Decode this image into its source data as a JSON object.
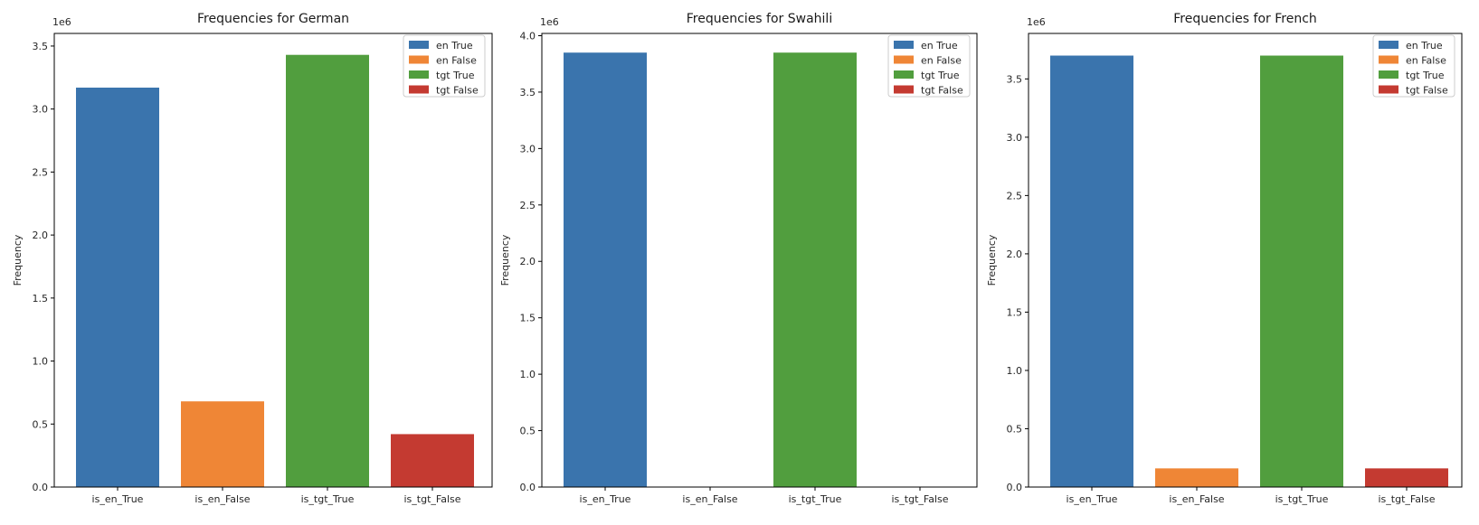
{
  "chart_data": [
    {
      "type": "bar",
      "title": "Frequencies for German",
      "xlabel": "",
      "ylabel": "Frequency",
      "y_offset_text": "1e6",
      "categories": [
        "is_en_True",
        "is_en_False",
        "is_tgt_True",
        "is_tgt_False"
      ],
      "values": [
        3170000,
        680000,
        3430000,
        420000
      ],
      "ylim": [
        0,
        3600000
      ],
      "yticks": [
        0,
        500000,
        1000000,
        1500000,
        2000000,
        2500000,
        3000000,
        3500000
      ],
      "ytick_labels": [
        "0.0",
        "0.5",
        "1.0",
        "1.5",
        "2.0",
        "2.5",
        "3.0",
        "3.5"
      ],
      "legend": [
        "en True",
        "en False",
        "tgt True",
        "tgt False"
      ],
      "legend_position": "top-right",
      "grid": false
    },
    {
      "type": "bar",
      "title": "Frequencies for Swahili",
      "xlabel": "",
      "ylabel": "Frequency",
      "y_offset_text": "1e6",
      "categories": [
        "is_en_True",
        "is_en_False",
        "is_tgt_True",
        "is_tgt_False"
      ],
      "values": [
        3850000,
        0,
        3850000,
        0
      ],
      "ylim": [
        0,
        4020000
      ],
      "yticks": [
        0,
        500000,
        1000000,
        1500000,
        2000000,
        2500000,
        3000000,
        3500000,
        4000000
      ],
      "ytick_labels": [
        "0.0",
        "0.5",
        "1.0",
        "1.5",
        "2.0",
        "2.5",
        "3.0",
        "3.5",
        "4.0"
      ],
      "legend": [
        "en True",
        "en False",
        "tgt True",
        "tgt False"
      ],
      "legend_position": "top-right",
      "grid": false
    },
    {
      "type": "bar",
      "title": "Frequencies for French",
      "xlabel": "",
      "ylabel": "Frequency",
      "y_offset_text": "1e6",
      "categories": [
        "is_en_True",
        "is_en_False",
        "is_tgt_True",
        "is_tgt_False"
      ],
      "values": [
        3700000,
        160000,
        3700000,
        160000
      ],
      "ylim": [
        0,
        3890000
      ],
      "yticks": [
        0,
        500000,
        1000000,
        1500000,
        2000000,
        2500000,
        3000000,
        3500000
      ],
      "ytick_labels": [
        "0.0",
        "0.5",
        "1.0",
        "1.5",
        "2.0",
        "2.5",
        "3.0",
        "3.5"
      ],
      "legend": [
        "en True",
        "en False",
        "tgt True",
        "tgt False"
      ],
      "legend_position": "top-right",
      "grid": false
    }
  ],
  "colors": [
    "#3a74ad",
    "#ef8636",
    "#519e3e",
    "#c43a31"
  ]
}
